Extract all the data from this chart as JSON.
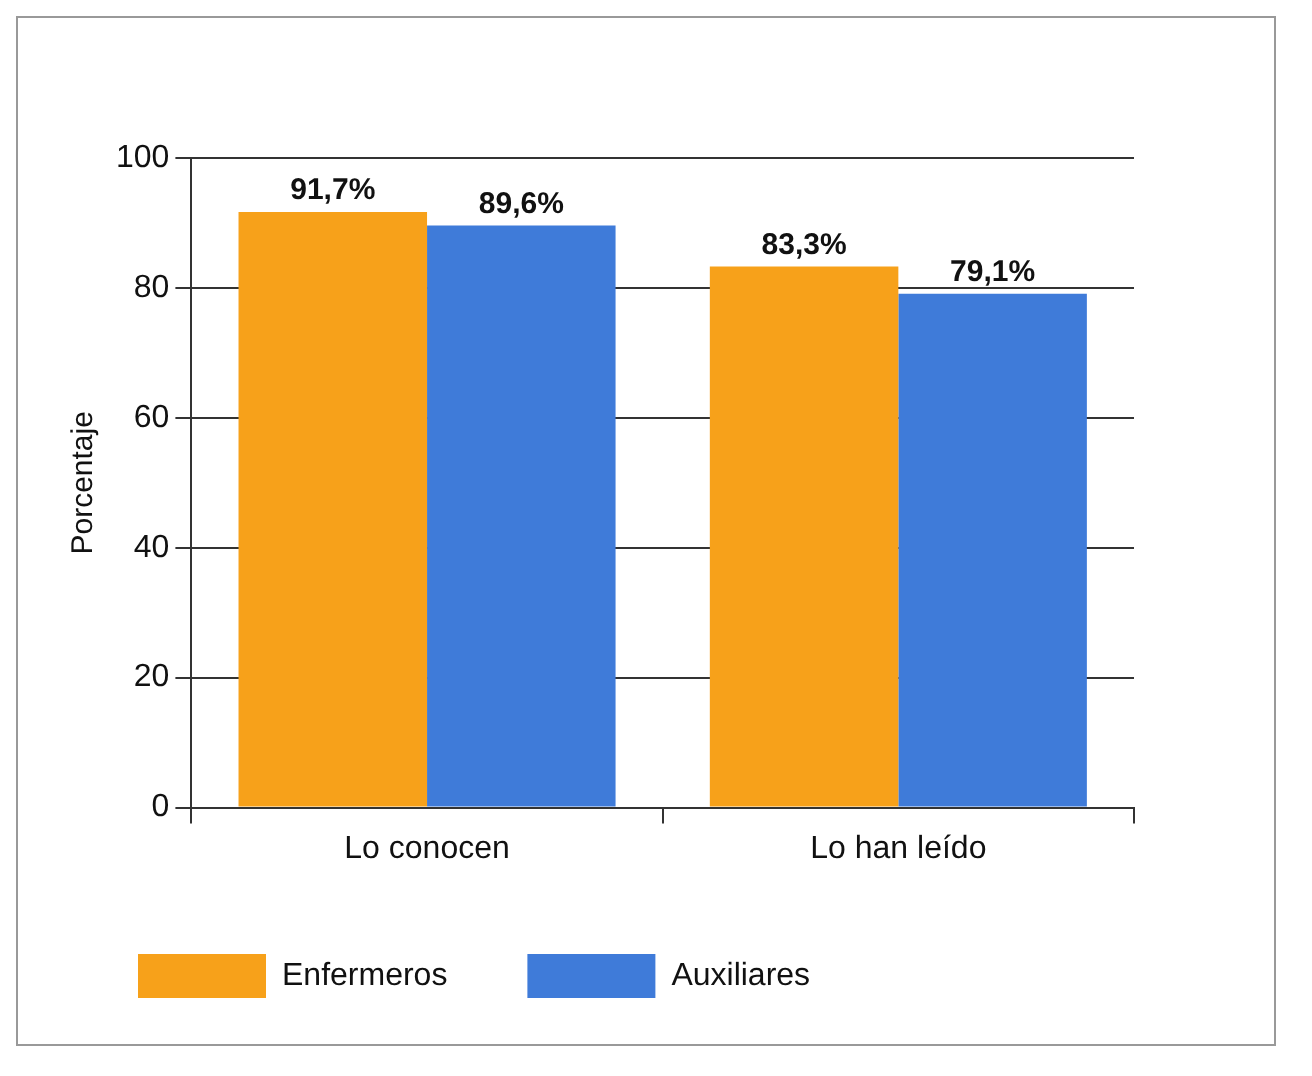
{
  "chart_data": {
    "type": "bar",
    "ylabel": "Porcentaje",
    "categories": [
      "Lo conocen",
      "Lo han leído"
    ],
    "series": [
      {
        "name": "Enfermeros",
        "color": "#f7a11a",
        "values": [
          91.7,
          83.3
        ],
        "value_labels": [
          "91,7%",
          "83,3%"
        ]
      },
      {
        "name": "Auxiliares",
        "color": "#3f7bd9",
        "values": [
          89.6,
          79.1
        ],
        "value_labels": [
          "89,6%",
          "79,1%"
        ]
      }
    ],
    "ylim": [
      0,
      100
    ],
    "yticks": [
      0,
      20,
      40,
      60,
      80,
      100
    ],
    "grid": "y",
    "legend": "bottom"
  }
}
